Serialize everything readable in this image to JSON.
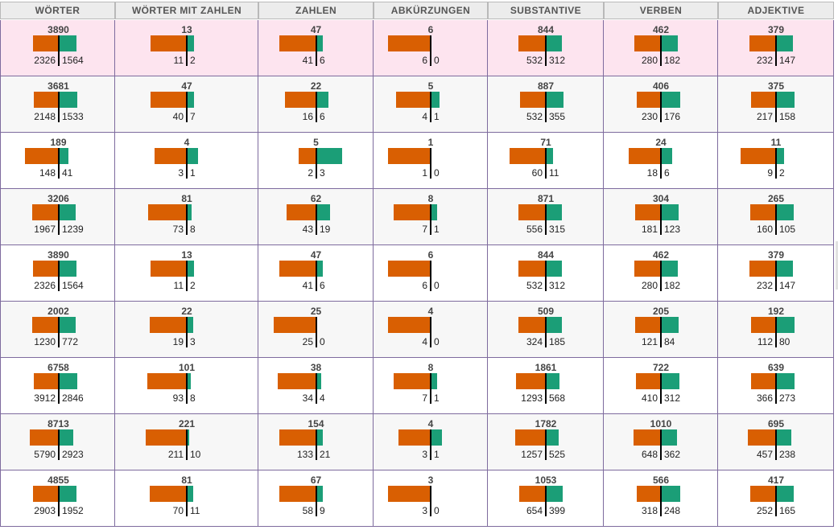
{
  "headers": [
    "WÖRTER",
    "WÖRTER MIT ZAHLEN",
    "ZAHLEN",
    "ABKÜRZUNGEN",
    "SUBSTANTIVE",
    "VERBEN",
    "ADJEKTIVE"
  ],
  "colors": {
    "negative": "#d95f02",
    "positive": "#1b9e77",
    "highlight_row": "#fde4ef",
    "alt_row": "#f7f7f7",
    "border": "#7e6b9e"
  },
  "rows": [
    [
      [
        3890,
        2326,
        1564
      ],
      [
        13,
        11,
        2
      ],
      [
        47,
        41,
        6
      ],
      [
        6,
        6,
        0
      ],
      [
        844,
        532,
        312
      ],
      [
        462,
        280,
        182
      ],
      [
        379,
        232,
        147
      ]
    ],
    [
      [
        3681,
        2148,
        1533
      ],
      [
        47,
        40,
        7
      ],
      [
        22,
        16,
        6
      ],
      [
        5,
        4,
        1
      ],
      [
        887,
        532,
        355
      ],
      [
        406,
        230,
        176
      ],
      [
        375,
        217,
        158
      ]
    ],
    [
      [
        189,
        148,
        41
      ],
      [
        4,
        3,
        1
      ],
      [
        5,
        2,
        3
      ],
      [
        1,
        1,
        0
      ],
      [
        71,
        60,
        11
      ],
      [
        24,
        18,
        6
      ],
      [
        11,
        9,
        2
      ]
    ],
    [
      [
        3206,
        1967,
        1239
      ],
      [
        81,
        73,
        8
      ],
      [
        62,
        43,
        19
      ],
      [
        8,
        7,
        1
      ],
      [
        871,
        556,
        315
      ],
      [
        304,
        181,
        123
      ],
      [
        265,
        160,
        105
      ]
    ],
    [
      [
        3890,
        2326,
        1564
      ],
      [
        13,
        11,
        2
      ],
      [
        47,
        41,
        6
      ],
      [
        6,
        6,
        0
      ],
      [
        844,
        532,
        312
      ],
      [
        462,
        280,
        182
      ],
      [
        379,
        232,
        147
      ]
    ],
    [
      [
        2002,
        1230,
        772
      ],
      [
        22,
        19,
        3
      ],
      [
        25,
        25,
        0
      ],
      [
        4,
        4,
        0
      ],
      [
        509,
        324,
        185
      ],
      [
        205,
        121,
        84
      ],
      [
        192,
        112,
        80
      ]
    ],
    [
      [
        6758,
        3912,
        2846
      ],
      [
        101,
        93,
        8
      ],
      [
        38,
        34,
        4
      ],
      [
        8,
        7,
        1
      ],
      [
        1861,
        1293,
        568
      ],
      [
        722,
        410,
        312
      ],
      [
        639,
        366,
        273
      ]
    ],
    [
      [
        8713,
        5790,
        2923
      ],
      [
        221,
        211,
        10
      ],
      [
        154,
        133,
        21
      ],
      [
        4,
        3,
        1
      ],
      [
        1782,
        1257,
        525
      ],
      [
        1010,
        648,
        362
      ],
      [
        695,
        457,
        238
      ]
    ],
    [
      [
        4855,
        2903,
        1952
      ],
      [
        81,
        70,
        11
      ],
      [
        67,
        58,
        9
      ],
      [
        3,
        3,
        0
      ],
      [
        1053,
        654,
        399
      ],
      [
        566,
        318,
        248
      ],
      [
        417,
        252,
        165
      ]
    ]
  ]
}
